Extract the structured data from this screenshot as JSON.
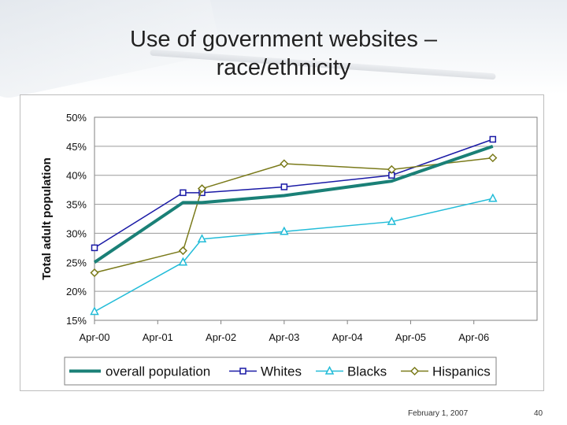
{
  "slide": {
    "title_line1": "Use of government websites –",
    "title_line2": "race/ethnicity",
    "footer_date": "February 1, 2007",
    "page_number": "40"
  },
  "chart_data": {
    "type": "line",
    "ylabel": "Total adult population",
    "xlabel": "",
    "x_ticks": [
      "Apr-00",
      "Apr-01",
      "Apr-02",
      "Apr-03",
      "Apr-04",
      "Apr-05",
      "Apr-06"
    ],
    "y_ticks": [
      "15%",
      "20%",
      "25%",
      "30%",
      "35%",
      "40%",
      "45%",
      "50%"
    ],
    "ylim": [
      15,
      50
    ],
    "xlim": [
      2000.0,
      2007.0
    ],
    "grid": "horizontal",
    "legend": "bottom",
    "series": [
      {
        "name": "overall population",
        "color": "#1a8077",
        "marker": "none",
        "points": [
          [
            2000.0,
            25
          ],
          [
            2001.4,
            35.3
          ],
          [
            2001.7,
            35.3
          ],
          [
            2003.0,
            36.5
          ],
          [
            2004.7,
            39
          ],
          [
            2006.3,
            45
          ]
        ]
      },
      {
        "name": "Whites",
        "color": "#1a1aa6",
        "marker": "square",
        "points": [
          [
            2000.0,
            27.5
          ],
          [
            2001.4,
            37
          ],
          [
            2001.7,
            37
          ],
          [
            2003.0,
            38
          ],
          [
            2004.7,
            40
          ],
          [
            2006.3,
            46.2
          ]
        ]
      },
      {
        "name": "Blacks",
        "color": "#22bcd8",
        "marker": "triangle",
        "points": [
          [
            2000.0,
            16.5
          ],
          [
            2001.4,
            25
          ],
          [
            2001.7,
            29
          ],
          [
            2003.0,
            30.3
          ],
          [
            2004.7,
            32
          ],
          [
            2006.3,
            36
          ]
        ]
      },
      {
        "name": "Hispanics",
        "color": "#7a7a1a",
        "marker": "diamond",
        "points": [
          [
            2000.0,
            23.2
          ],
          [
            2001.4,
            27
          ],
          [
            2001.7,
            37.7
          ],
          [
            2003.0,
            42
          ],
          [
            2004.7,
            41
          ],
          [
            2006.3,
            43
          ]
        ]
      }
    ]
  }
}
